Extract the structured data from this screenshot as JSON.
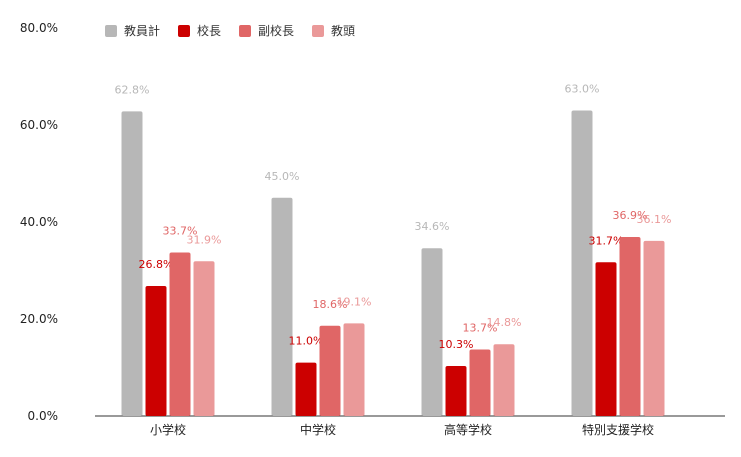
{
  "chart_data": {
    "type": "bar",
    "categories": [
      "小学校",
      "中学校",
      "高等学校",
      "特別支援学校"
    ],
    "series": [
      {
        "name": "教員計",
        "color": "#b7b7b7",
        "label_color": "#b7b7b7",
        "values": [
          62.8,
          45.0,
          34.6,
          63.0
        ]
      },
      {
        "name": "校長",
        "color": "#cc0000",
        "label_color": "#cc0000",
        "values": [
          26.8,
          11.0,
          10.3,
          31.7
        ]
      },
      {
        "name": "副校長",
        "color": "#e06666",
        "label_color": "#e06666",
        "values": [
          33.7,
          18.6,
          13.7,
          36.9
        ]
      },
      {
        "name": "教頭",
        "color": "#ea9999",
        "label_color": "#ea9999",
        "values": [
          31.9,
          19.1,
          14.8,
          36.1
        ]
      }
    ],
    "ylim": [
      0,
      80
    ],
    "yticks": [
      "0.0%",
      "20.0%",
      "40.0%",
      "60.0%",
      "80.0%"
    ],
    "ytick_values": [
      0,
      20,
      40,
      60,
      80
    ],
    "value_suffix": "%",
    "legend_position": "top-left",
    "grid": false
  }
}
